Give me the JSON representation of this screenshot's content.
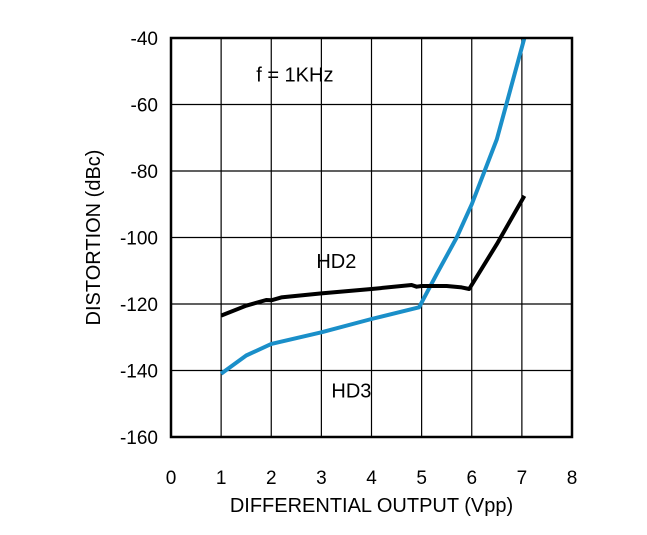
{
  "chart_data": {
    "type": "line",
    "xlabel": "DIFFERENTIAL OUTPUT (Vpp)",
    "ylabel": "DISTORTION (dBc)",
    "xlim": [
      0,
      8
    ],
    "ylim": [
      -160,
      -40
    ],
    "x_ticks": [
      "0",
      "1",
      "2",
      "3",
      "4",
      "5",
      "6",
      "7",
      "8"
    ],
    "y_ticks": [
      "-40",
      "-60",
      "-80",
      "-100",
      "-120",
      "-140",
      "-160"
    ],
    "grid": true,
    "annotations": [
      {
        "text": "f = 1KHz",
        "x": 1.7,
        "y": -51
      },
      {
        "text": "HD2",
        "x": 2.9,
        "y": -107
      },
      {
        "text": "HD3",
        "x": 3.2,
        "y": -146
      }
    ],
    "series": [
      {
        "name": "HD2",
        "color": "#000000",
        "points": [
          [
            1.0,
            -123.5
          ],
          [
            1.5,
            -120.5
          ],
          [
            1.9,
            -118.8
          ],
          [
            2.0,
            -118.9
          ],
          [
            2.2,
            -118.0
          ],
          [
            3.0,
            -116.8
          ],
          [
            4.0,
            -115.5
          ],
          [
            4.8,
            -114.3
          ],
          [
            4.9,
            -114.8
          ],
          [
            5.0,
            -114.6
          ],
          [
            5.5,
            -114.6
          ],
          [
            5.8,
            -115.0
          ],
          [
            5.95,
            -115.5
          ],
          [
            6.5,
            -102.0
          ],
          [
            7.05,
            -87.5
          ]
        ]
      },
      {
        "name": "HD3",
        "color": "#1a8fc9",
        "points": [
          [
            1.0,
            -141.0
          ],
          [
            1.5,
            -135.5
          ],
          [
            2.0,
            -132.0
          ],
          [
            3.0,
            -128.5
          ],
          [
            4.0,
            -124.5
          ],
          [
            4.95,
            -121.0
          ],
          [
            5.3,
            -111.0
          ],
          [
            5.7,
            -100.0
          ],
          [
            6.0,
            -90.0
          ],
          [
            6.5,
            -70.5
          ],
          [
            7.05,
            -40.0
          ]
        ]
      }
    ]
  }
}
